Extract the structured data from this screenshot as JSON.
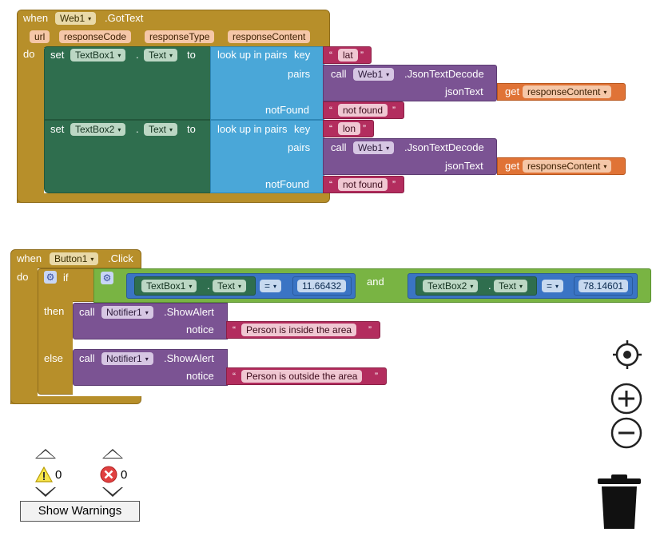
{
  "colors": {
    "event": "#b78f2a",
    "setter": "#2f6e4e",
    "lookup": "#4aa7d8",
    "call": "#7b5393",
    "text_string": "#b32d5e",
    "get": "#e07336",
    "math": "#3a74c4",
    "logic": "#79b443"
  },
  "block1": {
    "when": "when",
    "component": "Web1",
    "event": ".GotText",
    "params": [
      "url",
      "responseCode",
      "responseType",
      "responseContent"
    ],
    "do": "do",
    "rows": [
      {
        "set": "set",
        "component": "TextBox1",
        "property": "Text",
        "to": "to",
        "lookup": "look up in pairs",
        "key_label": "key",
        "key": "lat",
        "pairs_label": "pairs",
        "call": "call",
        "call_component": "Web1",
        "method": ".JsonTextDecode",
        "json_label": "jsonText",
        "get": "get",
        "get_var": "responseContent",
        "notfound_label": "notFound",
        "notfound": "not found"
      },
      {
        "set": "set",
        "component": "TextBox2",
        "property": "Text",
        "to": "to",
        "lookup": "look up in pairs",
        "key_label": "key",
        "key": "lon",
        "pairs_label": "pairs",
        "call": "call",
        "call_component": "Web1",
        "method": ".JsonTextDecode",
        "json_label": "jsonText",
        "get": "get",
        "get_var": "responseContent",
        "notfound_label": "notFound",
        "notfound": "not found"
      }
    ]
  },
  "block2": {
    "when": "when",
    "component": "Button1",
    "event": ".Click",
    "do": "do",
    "if": "if",
    "then": "then",
    "else": "else",
    "cond1": {
      "component": "TextBox1",
      "property": "Text",
      "op": "=",
      "value": "11.66432"
    },
    "and": "and",
    "cond2": {
      "component": "TextBox2",
      "property": "Text",
      "op": "=",
      "value": "78.14601"
    },
    "then_call": {
      "call": "call",
      "component": "Notifier1",
      "method": ".ShowAlert",
      "notice": "notice",
      "message": "Person is inside the area"
    },
    "else_call": {
      "call": "call",
      "component": "Notifier1",
      "method": ".ShowAlert",
      "notice": "notice",
      "message": "Person is outside the area"
    }
  },
  "warnings": {
    "warning_count": "0",
    "error_count": "0",
    "button_label": "Show Warnings"
  },
  "workspace_controls": {
    "center": "crosshair-icon",
    "zoom_in": "zoom-in-icon",
    "zoom_out": "zoom-out-icon",
    "trash": "trash-icon"
  }
}
